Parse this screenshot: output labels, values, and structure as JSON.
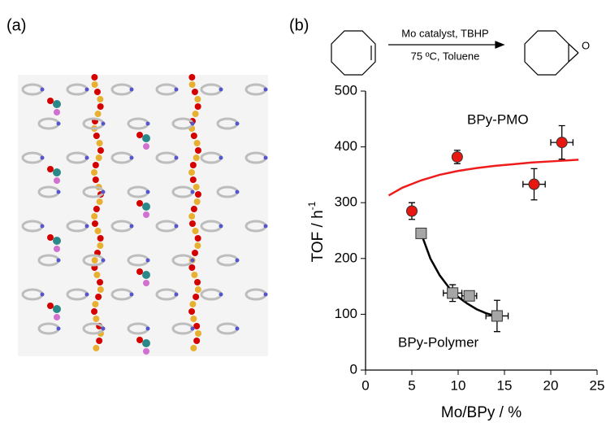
{
  "panels": {
    "a": "(a)",
    "b": "(b)"
  },
  "scheme": {
    "conditions_top": "Mo catalyst, TBHP",
    "conditions_bottom": "75 ºC, Toluene",
    "product_atom": "O"
  },
  "chart_data": {
    "type": "scatter",
    "xlabel": "Mo/BPy / %",
    "ylabel": "TOF  / h",
    "ylabel_sup": "-1",
    "xlim": [
      0,
      25
    ],
    "xticks": [
      0,
      5,
      10,
      15,
      20,
      25
    ],
    "ylim": [
      0,
      500
    ],
    "yticks": [
      0,
      100,
      200,
      300,
      400,
      500
    ],
    "grid": false,
    "series": [
      {
        "name": "BPy-PMO",
        "color": "#e8170f",
        "marker": "circle",
        "label_color": "#1a1ae6",
        "x": [
          5.0,
          9.9,
          18.2,
          21.2
        ],
        "values": [
          285,
          382,
          333,
          408
        ],
        "x_errors": [
          0,
          0,
          1.2,
          1.2
        ],
        "y_errors": [
          15,
          12,
          28,
          30
        ],
        "fit_color": "#ee1c1c",
        "fit_x": [
          2.5,
          4,
          6,
          8,
          10,
          12,
          14,
          16,
          18,
          20,
          23
        ],
        "fit_values": [
          313,
          327,
          340,
          350,
          357,
          362,
          366,
          369,
          372,
          374,
          377
        ]
      },
      {
        "name": "BPy-Polymer",
        "color": "#a6a6a6",
        "marker": "square",
        "label_color": "#1a1ae6",
        "x": [
          6.0,
          9.4,
          11.2,
          14.2
        ],
        "values": [
          245,
          138,
          133,
          97
        ],
        "x_errors": [
          0,
          1.0,
          0.8,
          1.2
        ],
        "y_errors": [
          0,
          15,
          8,
          28
        ],
        "fit_color": "#000000",
        "fit_x": [
          6,
          7,
          8,
          9,
          10,
          11,
          12,
          13,
          14
        ],
        "fit_values": [
          245,
          200,
          170,
          148,
          131,
          119,
          109,
          102,
          97
        ]
      }
    ]
  }
}
